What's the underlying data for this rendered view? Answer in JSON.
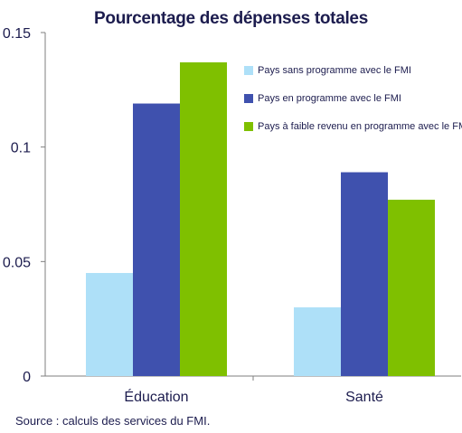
{
  "chart_data": {
    "type": "bar",
    "title": "Pourcentage des dépenses totales",
    "categories": [
      "Éducation",
      "Santé"
    ],
    "series": [
      {
        "name": "Pays sans programme avec le FMI",
        "values": [
          0.045,
          0.03
        ],
        "color": "#aee0f8"
      },
      {
        "name": "Pays en programme avec le FMI",
        "values": [
          0.119,
          0.089
        ],
        "color": "#3f51ae"
      },
      {
        "name": "Pays à faible revenu en programme avec le FMI",
        "values": [
          0.137,
          0.077
        ],
        "color": "#7fc000"
      }
    ],
    "ylim": [
      0,
      0.15
    ],
    "yticks": [
      "0",
      "0.05",
      "0.1",
      "0.15"
    ],
    "ytick_values": [
      0,
      0.05,
      0.1,
      0.15
    ],
    "legend_position": "top-right",
    "grid": false
  },
  "source": "Source : calculs des services du FMI."
}
